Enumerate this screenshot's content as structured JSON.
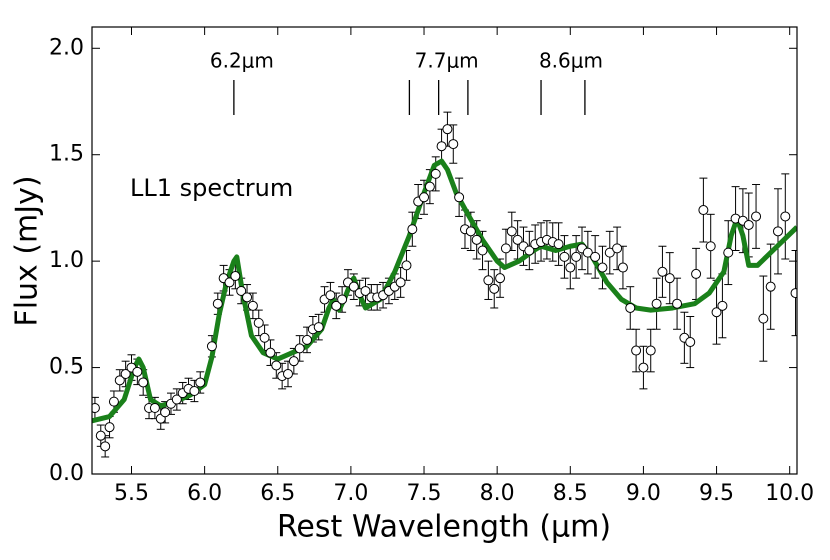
{
  "chart_data": {
    "type": "scatter",
    "text": "LL1 spectrum",
    "x_label": "Rest Wavelength (μm)",
    "y_label": "Flux (mJy)",
    "xlim": [
      5.23,
      10.05
    ],
    "ylim": [
      0,
      2.1
    ],
    "xticks": [
      5.5,
      {
        "value": 6,
        "label": "6.0"
      },
      6.5,
      {
        "value": 7,
        "label": "7.0"
      },
      7.5,
      {
        "value": 8,
        "label": "8.0"
      },
      8.5,
      {
        "value": 9,
        "label": "9.0"
      },
      9.5,
      {
        "value": 10,
        "label": "10.0"
      }
    ],
    "yticks": [
      {
        "value": 0,
        "label": "0.0"
      },
      0.5,
      {
        "value": 1,
        "label": "1.0"
      },
      1.5,
      {
        "value": 2,
        "label": "2.0"
      }
    ],
    "annotations": [
      {
        "label": "6.2μm",
        "x": [
          6.2
        ]
      },
      {
        "label": "7.7μm",
        "x": [
          7.4,
          7.6,
          7.8
        ]
      },
      {
        "label": "8.6μm",
        "x": [
          8.3,
          8.6
        ]
      }
    ],
    "points": {
      "x": [
        5.25,
        5.29,
        5.32,
        5.35,
        5.38,
        5.42,
        5.46,
        5.5,
        5.54,
        5.58,
        5.62,
        5.66,
        5.7,
        5.73,
        5.77,
        5.81,
        5.85,
        5.89,
        5.93,
        5.97,
        6.05,
        6.09,
        6.13,
        6.17,
        6.21,
        6.25,
        6.29,
        6.33,
        6.37,
        6.41,
        6.45,
        6.49,
        6.53,
        6.57,
        6.61,
        6.65,
        6.7,
        6.74,
        6.78,
        6.82,
        6.86,
        6.9,
        6.94,
        6.98,
        7.02,
        7.06,
        7.1,
        7.14,
        7.18,
        7.22,
        7.26,
        7.3,
        7.34,
        7.38,
        7.42,
        7.46,
        7.5,
        7.54,
        7.58,
        7.62,
        7.66,
        7.7,
        7.74,
        7.78,
        7.82,
        7.86,
        7.9,
        7.94,
        7.98,
        8.02,
        8.06,
        8.1,
        8.14,
        8.18,
        8.22,
        8.26,
        8.3,
        8.34,
        8.38,
        8.42,
        8.46,
        8.5,
        8.54,
        8.58,
        8.62,
        8.67,
        8.72,
        8.77,
        8.82,
        8.86,
        8.91,
        8.95,
        9.0,
        9.05,
        9.09,
        9.13,
        9.18,
        9.23,
        9.28,
        9.32,
        9.36,
        9.41,
        9.46,
        9.5,
        9.54,
        9.58,
        9.63,
        9.68,
        9.72,
        9.77,
        9.82,
        9.87,
        9.92,
        9.97,
        10.04
      ],
      "values": [
        0.31,
        0.18,
        0.13,
        0.22,
        0.34,
        0.44,
        0.47,
        0.5,
        0.48,
        0.43,
        0.31,
        0.31,
        0.26,
        0.29,
        0.33,
        0.35,
        0.38,
        0.4,
        0.39,
        0.43,
        0.6,
        0.8,
        0.92,
        0.9,
        0.93,
        0.86,
        0.83,
        0.79,
        0.71,
        0.64,
        0.57,
        0.51,
        0.46,
        0.47,
        0.53,
        0.59,
        0.63,
        0.68,
        0.69,
        0.82,
        0.84,
        0.79,
        0.82,
        0.9,
        0.88,
        0.85,
        0.86,
        0.83,
        0.83,
        0.84,
        0.86,
        0.88,
        0.9,
        0.98,
        1.15,
        1.28,
        1.3,
        1.35,
        1.41,
        1.54,
        1.62,
        1.55,
        1.3,
        1.15,
        1.14,
        1.1,
        1.05,
        0.91,
        0.87,
        0.92,
        1.06,
        1.14,
        1.1,
        1.07,
        1.05,
        1.08,
        1.09,
        1.1,
        1.09,
        1.08,
        1.02,
        0.97,
        1.02,
        1.06,
        1.04,
        1.02,
        0.97,
        1.04,
        1.06,
        0.97,
        0.78,
        0.58,
        0.5,
        0.58,
        0.8,
        0.95,
        0.92,
        0.8,
        0.64,
        0.62,
        0.94,
        1.24,
        1.07,
        0.76,
        0.79,
        1.04,
        1.2,
        1.19,
        1.17,
        1.21,
        0.73,
        0.88,
        1.14,
        1.21,
        0.85
      ],
      "errors": [
        0.05,
        0.05,
        0.05,
        0.05,
        0.05,
        0.05,
        0.06,
        0.06,
        0.06,
        0.06,
        0.05,
        0.05,
        0.05,
        0.05,
        0.05,
        0.05,
        0.05,
        0.05,
        0.05,
        0.05,
        0.05,
        0.05,
        0.06,
        0.06,
        0.06,
        0.06,
        0.06,
        0.06,
        0.06,
        0.06,
        0.06,
        0.06,
        0.06,
        0.06,
        0.06,
        0.06,
        0.06,
        0.06,
        0.06,
        0.06,
        0.06,
        0.06,
        0.06,
        0.06,
        0.06,
        0.06,
        0.06,
        0.06,
        0.06,
        0.06,
        0.06,
        0.06,
        0.07,
        0.07,
        0.08,
        0.08,
        0.08,
        0.08,
        0.08,
        0.08,
        0.08,
        0.09,
        0.09,
        0.09,
        0.09,
        0.09,
        0.09,
        0.09,
        0.09,
        0.09,
        0.09,
        0.09,
        0.09,
        0.09,
        0.09,
        0.09,
        0.09,
        0.09,
        0.09,
        0.1,
        0.1,
        0.1,
        0.1,
        0.1,
        0.1,
        0.1,
        0.1,
        0.1,
        0.1,
        0.1,
        0.1,
        0.1,
        0.1,
        0.1,
        0.12,
        0.12,
        0.12,
        0.12,
        0.12,
        0.12,
        0.12,
        0.15,
        0.15,
        0.15,
        0.15,
        0.15,
        0.15,
        0.15,
        0.15,
        0.15,
        0.2,
        0.2,
        0.2,
        0.2,
        0.2
      ]
    },
    "fit": {
      "color": "#1a801a",
      "x": [
        5.23,
        5.35,
        5.45,
        5.52,
        5.55,
        5.58,
        5.63,
        5.7,
        5.8,
        5.9,
        6.0,
        6.05,
        6.1,
        6.15,
        6.2,
        6.22,
        6.26,
        6.32,
        6.4,
        6.5,
        6.6,
        6.7,
        6.8,
        6.85,
        6.88,
        6.92,
        6.96,
        7.0,
        7.02,
        7.06,
        7.1,
        7.2,
        7.3,
        7.4,
        7.5,
        7.57,
        7.62,
        7.66,
        7.72,
        7.8,
        7.9,
        8.0,
        8.05,
        8.15,
        8.25,
        8.3,
        8.4,
        8.5,
        8.58,
        8.65,
        8.75,
        8.85,
        8.95,
        9.05,
        9.2,
        9.35,
        9.45,
        9.55,
        9.6,
        9.64,
        9.68,
        9.72,
        9.78,
        9.9,
        10.05
      ],
      "values": [
        0.25,
        0.27,
        0.35,
        0.5,
        0.54,
        0.5,
        0.35,
        0.32,
        0.34,
        0.37,
        0.42,
        0.55,
        0.75,
        0.9,
        1.0,
        1.02,
        0.85,
        0.65,
        0.57,
        0.54,
        0.57,
        0.6,
        0.68,
        0.78,
        0.82,
        0.77,
        0.83,
        0.9,
        0.92,
        0.84,
        0.78,
        0.82,
        0.95,
        1.12,
        1.32,
        1.45,
        1.47,
        1.43,
        1.32,
        1.22,
        1.1,
        1.0,
        0.97,
        1.0,
        1.05,
        1.07,
        1.05,
        1.07,
        1.08,
        1.02,
        0.9,
        0.82,
        0.78,
        0.77,
        0.78,
        0.8,
        0.85,
        0.95,
        1.12,
        1.2,
        1.12,
        0.98,
        0.98,
        1.06,
        1.16
      ]
    }
  }
}
